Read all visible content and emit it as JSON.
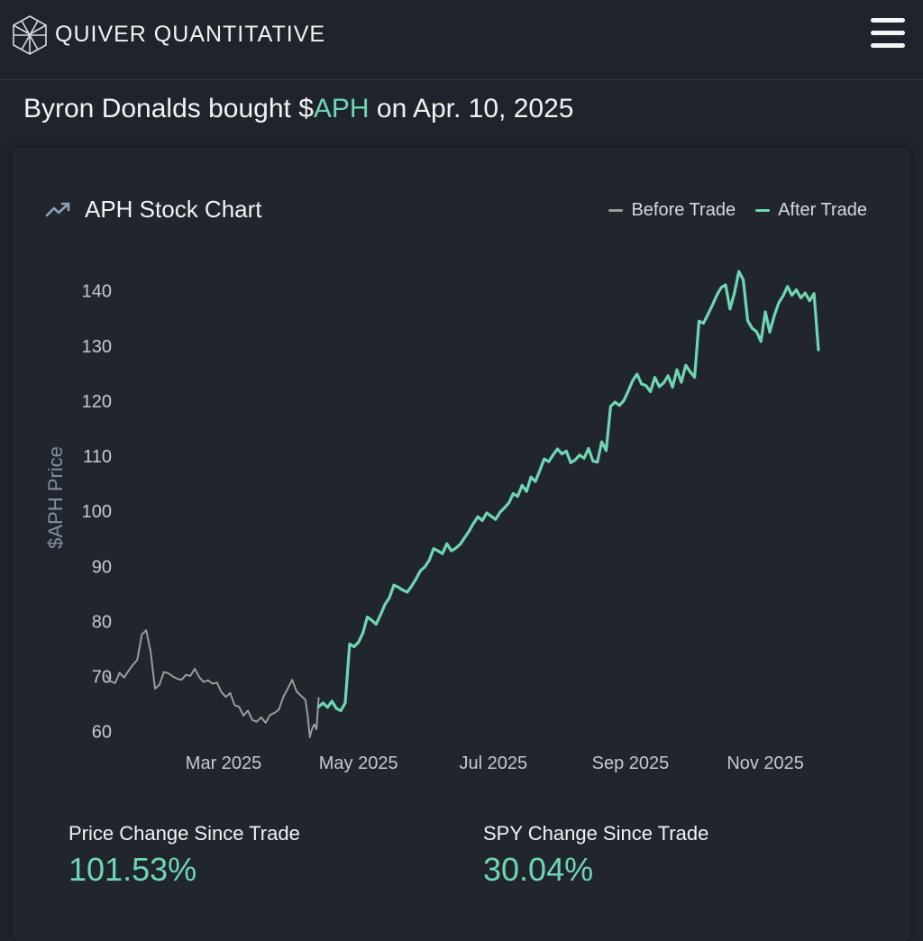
{
  "header": {
    "brand": "QUIVER QUANTITATIVE",
    "logo_icon": "quiver-cube-logo-icon",
    "menu_icon": "hamburger-menu-icon"
  },
  "headline": {
    "prefix": "Byron Donalds bought $",
    "ticker": "APH",
    "suffix": " on Apr. 10, 2025"
  },
  "chart": {
    "title": "APH Stock Chart",
    "title_icon": "trending-up-icon",
    "legend": [
      {
        "label": "Before Trade",
        "color": "#9b9b9b"
      },
      {
        "label": "After Trade",
        "color": "#6fd6b5"
      }
    ]
  },
  "chart_data": {
    "type": "line",
    "title": "APH Stock Chart",
    "xlabel": "",
    "ylabel": "$APH Price",
    "ylim": [
      57,
      146
    ],
    "yticks": [
      60,
      70,
      80,
      90,
      100,
      110,
      120,
      130,
      140
    ],
    "xtick_labels": [
      "Mar 2025",
      "May 2025",
      "Jul 2025",
      "Sep 2025",
      "Nov 2025"
    ],
    "xtick_dates": [
      "2025-03-01",
      "2025-05-01",
      "2025-07-01",
      "2025-09-01",
      "2025-11-01"
    ],
    "xlim": [
      "2025-01-07",
      "2025-12-17"
    ],
    "grid": false,
    "legend_position": "top-right",
    "series": [
      {
        "name": "Before Trade",
        "color": "#9b9b9b",
        "points": [
          [
            "2025-01-07",
            70.2
          ],
          [
            "2025-01-09",
            69.1
          ],
          [
            "2025-01-11",
            68.8
          ],
          [
            "2025-01-13",
            70.7
          ],
          [
            "2025-01-15",
            69.8
          ],
          [
            "2025-01-17",
            71.0
          ],
          [
            "2025-01-19",
            72.1
          ],
          [
            "2025-01-21",
            73.0
          ],
          [
            "2025-01-23",
            77.6
          ],
          [
            "2025-01-25",
            78.4
          ],
          [
            "2025-01-27",
            74.5
          ],
          [
            "2025-01-29",
            67.8
          ],
          [
            "2025-01-31",
            68.5
          ],
          [
            "2025-02-02",
            70.8
          ],
          [
            "2025-02-04",
            70.6
          ],
          [
            "2025-02-06",
            70.0
          ],
          [
            "2025-02-08",
            69.6
          ],
          [
            "2025-02-10",
            69.4
          ],
          [
            "2025-02-12",
            70.3
          ],
          [
            "2025-02-14",
            70.1
          ],
          [
            "2025-02-16",
            71.4
          ],
          [
            "2025-02-18",
            69.9
          ],
          [
            "2025-02-20",
            69.0
          ],
          [
            "2025-02-22",
            69.3
          ],
          [
            "2025-02-24",
            68.7
          ],
          [
            "2025-02-26",
            68.9
          ],
          [
            "2025-02-28",
            67.2
          ],
          [
            "2025-03-02",
            66.3
          ],
          [
            "2025-03-04",
            67.0
          ],
          [
            "2025-03-06",
            64.8
          ],
          [
            "2025-03-08",
            64.5
          ],
          [
            "2025-03-10",
            62.9
          ],
          [
            "2025-03-12",
            63.8
          ],
          [
            "2025-03-14",
            62.1
          ],
          [
            "2025-03-16",
            61.8
          ],
          [
            "2025-03-18",
            62.6
          ],
          [
            "2025-03-20",
            61.6
          ],
          [
            "2025-03-22",
            63.0
          ],
          [
            "2025-03-24",
            63.4
          ],
          [
            "2025-03-26",
            64.0
          ],
          [
            "2025-03-28",
            66.3
          ],
          [
            "2025-03-30",
            67.8
          ],
          [
            "2025-04-01",
            69.4
          ],
          [
            "2025-04-03",
            67.3
          ],
          [
            "2025-04-05",
            66.5
          ],
          [
            "2025-04-07",
            65.8
          ],
          [
            "2025-04-08",
            63.0
          ],
          [
            "2025-04-09",
            59.0
          ],
          [
            "2025-04-10",
            60.5
          ],
          [
            "2025-04-11",
            61.3
          ],
          [
            "2025-04-12",
            60.4
          ],
          [
            "2025-04-13",
            66.1
          ]
        ]
      },
      {
        "name": "After Trade",
        "color": "#6fd6b5",
        "points": [
          [
            "2025-04-13",
            64.5
          ],
          [
            "2025-04-15",
            65.2
          ],
          [
            "2025-04-17",
            64.4
          ],
          [
            "2025-04-19",
            65.5
          ],
          [
            "2025-04-21",
            64.2
          ],
          [
            "2025-04-23",
            63.8
          ],
          [
            "2025-04-25",
            65.2
          ],
          [
            "2025-04-27",
            75.9
          ],
          [
            "2025-04-29",
            75.4
          ],
          [
            "2025-05-01",
            76.2
          ],
          [
            "2025-05-03",
            77.9
          ],
          [
            "2025-05-05",
            80.8
          ],
          [
            "2025-05-07",
            80.2
          ],
          [
            "2025-05-09",
            79.5
          ],
          [
            "2025-05-11",
            81.2
          ],
          [
            "2025-05-13",
            83.1
          ],
          [
            "2025-05-15",
            84.3
          ],
          [
            "2025-05-17",
            86.6
          ],
          [
            "2025-05-19",
            86.2
          ],
          [
            "2025-05-21",
            85.7
          ],
          [
            "2025-05-23",
            85.3
          ],
          [
            "2025-05-25",
            86.4
          ],
          [
            "2025-05-27",
            87.7
          ],
          [
            "2025-05-29",
            89.2
          ],
          [
            "2025-05-31",
            89.9
          ],
          [
            "2025-06-02",
            91.1
          ],
          [
            "2025-06-04",
            93.2
          ],
          [
            "2025-06-06",
            92.8
          ],
          [
            "2025-06-08",
            92.3
          ],
          [
            "2025-06-10",
            94.1
          ],
          [
            "2025-06-12",
            92.8
          ],
          [
            "2025-06-14",
            93.3
          ],
          [
            "2025-06-16",
            94.0
          ],
          [
            "2025-06-18",
            95.2
          ],
          [
            "2025-06-20",
            96.4
          ],
          [
            "2025-06-22",
            97.8
          ],
          [
            "2025-06-24",
            99.0
          ],
          [
            "2025-06-26",
            98.3
          ],
          [
            "2025-06-28",
            99.7
          ],
          [
            "2025-06-30",
            99.1
          ],
          [
            "2025-07-02",
            98.5
          ],
          [
            "2025-07-04",
            99.8
          ],
          [
            "2025-07-06",
            100.6
          ],
          [
            "2025-07-08",
            101.5
          ],
          [
            "2025-07-10",
            103.2
          ],
          [
            "2025-07-12",
            102.7
          ],
          [
            "2025-07-14",
            104.7
          ],
          [
            "2025-07-16",
            103.6
          ],
          [
            "2025-07-18",
            106.2
          ],
          [
            "2025-07-20",
            105.4
          ],
          [
            "2025-07-22",
            107.4
          ],
          [
            "2025-07-24",
            109.5
          ],
          [
            "2025-07-26",
            109.0
          ],
          [
            "2025-07-28",
            110.2
          ],
          [
            "2025-07-30",
            111.3
          ],
          [
            "2025-08-01",
            110.4
          ],
          [
            "2025-08-03",
            110.9
          ],
          [
            "2025-08-05",
            108.8
          ],
          [
            "2025-08-07",
            109.3
          ],
          [
            "2025-08-09",
            110.2
          ],
          [
            "2025-08-11",
            109.6
          ],
          [
            "2025-08-13",
            111.4
          ],
          [
            "2025-08-15",
            109.1
          ],
          [
            "2025-08-17",
            108.9
          ],
          [
            "2025-08-19",
            112.6
          ],
          [
            "2025-08-21",
            111.0
          ],
          [
            "2025-08-23",
            119.0
          ],
          [
            "2025-08-25",
            119.8
          ],
          [
            "2025-08-27",
            119.2
          ],
          [
            "2025-08-29",
            120.1
          ],
          [
            "2025-08-31",
            121.8
          ],
          [
            "2025-09-02",
            123.7
          ],
          [
            "2025-09-04",
            124.9
          ],
          [
            "2025-09-06",
            123.1
          ],
          [
            "2025-09-08",
            122.8
          ],
          [
            "2025-09-10",
            121.7
          ],
          [
            "2025-09-12",
            124.3
          ],
          [
            "2025-09-14",
            122.6
          ],
          [
            "2025-09-16",
            123.3
          ],
          [
            "2025-09-18",
            124.6
          ],
          [
            "2025-09-20",
            122.5
          ],
          [
            "2025-09-22",
            125.7
          ],
          [
            "2025-09-24",
            123.4
          ],
          [
            "2025-09-26",
            126.5
          ],
          [
            "2025-09-28",
            125.3
          ],
          [
            "2025-09-30",
            124.3
          ],
          [
            "2025-10-02",
            134.5
          ],
          [
            "2025-10-04",
            134.1
          ],
          [
            "2025-10-06",
            135.7
          ],
          [
            "2025-10-08",
            137.4
          ],
          [
            "2025-10-10",
            139.2
          ],
          [
            "2025-10-12",
            140.6
          ],
          [
            "2025-10-14",
            141.1
          ],
          [
            "2025-10-16",
            136.7
          ],
          [
            "2025-10-18",
            139.6
          ],
          [
            "2025-10-20",
            143.5
          ],
          [
            "2025-10-22",
            142.0
          ],
          [
            "2025-10-24",
            134.6
          ],
          [
            "2025-10-26",
            133.2
          ],
          [
            "2025-10-28",
            132.6
          ],
          [
            "2025-10-30",
            130.8
          ],
          [
            "2025-11-01",
            136.2
          ],
          [
            "2025-11-03",
            132.5
          ],
          [
            "2025-11-05",
            135.5
          ],
          [
            "2025-11-07",
            137.8
          ],
          [
            "2025-11-09",
            139.1
          ],
          [
            "2025-11-11",
            140.8
          ],
          [
            "2025-11-13",
            139.2
          ],
          [
            "2025-11-15",
            140.2
          ],
          [
            "2025-11-17",
            138.7
          ],
          [
            "2025-11-19",
            139.6
          ],
          [
            "2025-11-21",
            138.2
          ],
          [
            "2025-11-23",
            139.5
          ],
          [
            "2025-11-25",
            129.3
          ]
        ]
      }
    ]
  },
  "stats": {
    "price_change_label": "Price Change Since Trade",
    "price_change_value": "101.53%",
    "spy_change_label": "SPY Change Since Trade",
    "spy_change_value": "30.04%"
  }
}
